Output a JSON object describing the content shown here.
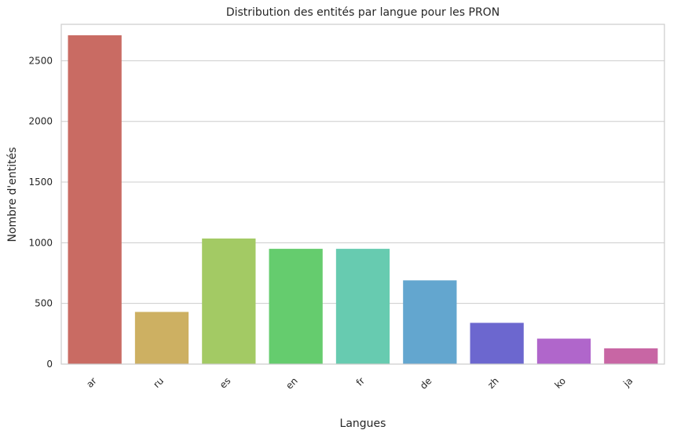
{
  "chart_data": {
    "type": "bar",
    "title": "Distribution des entités par langue pour les PRON",
    "xlabel": "Langues",
    "ylabel": "Nombre d'entités",
    "categories": [
      "ar",
      "ru",
      "es",
      "en",
      "fr",
      "de",
      "zh",
      "ko",
      "ja"
    ],
    "values": [
      2710,
      430,
      1035,
      950,
      950,
      690,
      340,
      210,
      130
    ],
    "colors": [
      "#c96b63",
      "#cdb062",
      "#a3ca64",
      "#65cc6e",
      "#67cbb0",
      "#63a6cf",
      "#6c67cf",
      "#b066cb",
      "#c866a4"
    ],
    "ylim": [
      0,
      2800
    ],
    "yticks": [
      0,
      500,
      1000,
      1500,
      2000,
      2500
    ],
    "grid": "horizontal",
    "legend": "none"
  }
}
